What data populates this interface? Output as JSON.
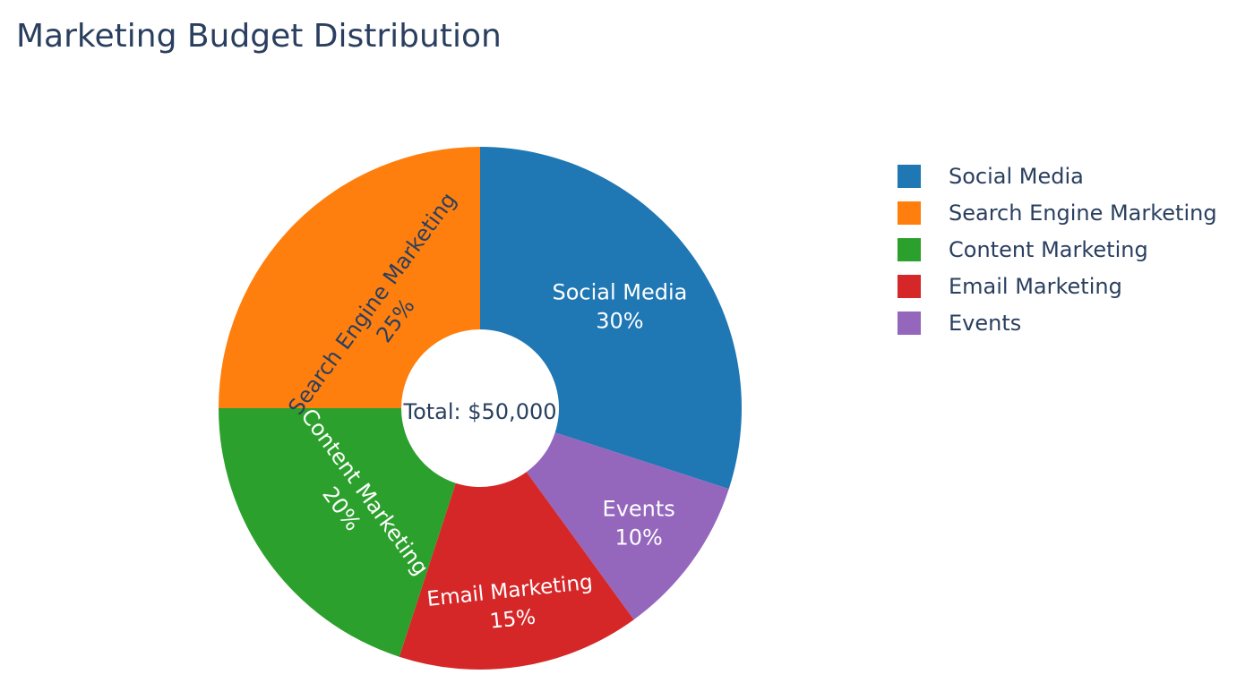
{
  "chart_data": {
    "type": "pie",
    "title": "Marketing Budget Distribution",
    "center_text": "Total: $50,000",
    "hole": true,
    "legend_position": "right",
    "slices": [
      {
        "label": "Social Media",
        "value": 30,
        "percent_text": "30%",
        "color": "#1f77b4",
        "text_color": "#ffffff"
      },
      {
        "label": "Events",
        "value": 10,
        "percent_text": "10%",
        "color": "#9467bd",
        "text_color": "#ffffff"
      },
      {
        "label": "Email Marketing",
        "value": 15,
        "percent_text": "15%",
        "color": "#d62728",
        "text_color": "#ffffff"
      },
      {
        "label": "Content Marketing",
        "value": 20,
        "percent_text": "20%",
        "color": "#2ca02c",
        "text_color": "#ffffff"
      },
      {
        "label": "Search Engine Marketing",
        "value": 25,
        "percent_text": "25%",
        "color": "#ff7f0e",
        "text_color": "#2a3f5f"
      }
    ],
    "legend": [
      {
        "label": "Social Media",
        "color": "#1f77b4"
      },
      {
        "label": "Search Engine Marketing",
        "color": "#ff7f0e"
      },
      {
        "label": "Content Marketing",
        "color": "#2ca02c"
      },
      {
        "label": "Email Marketing",
        "color": "#d62728"
      },
      {
        "label": "Events",
        "color": "#9467bd"
      }
    ]
  }
}
